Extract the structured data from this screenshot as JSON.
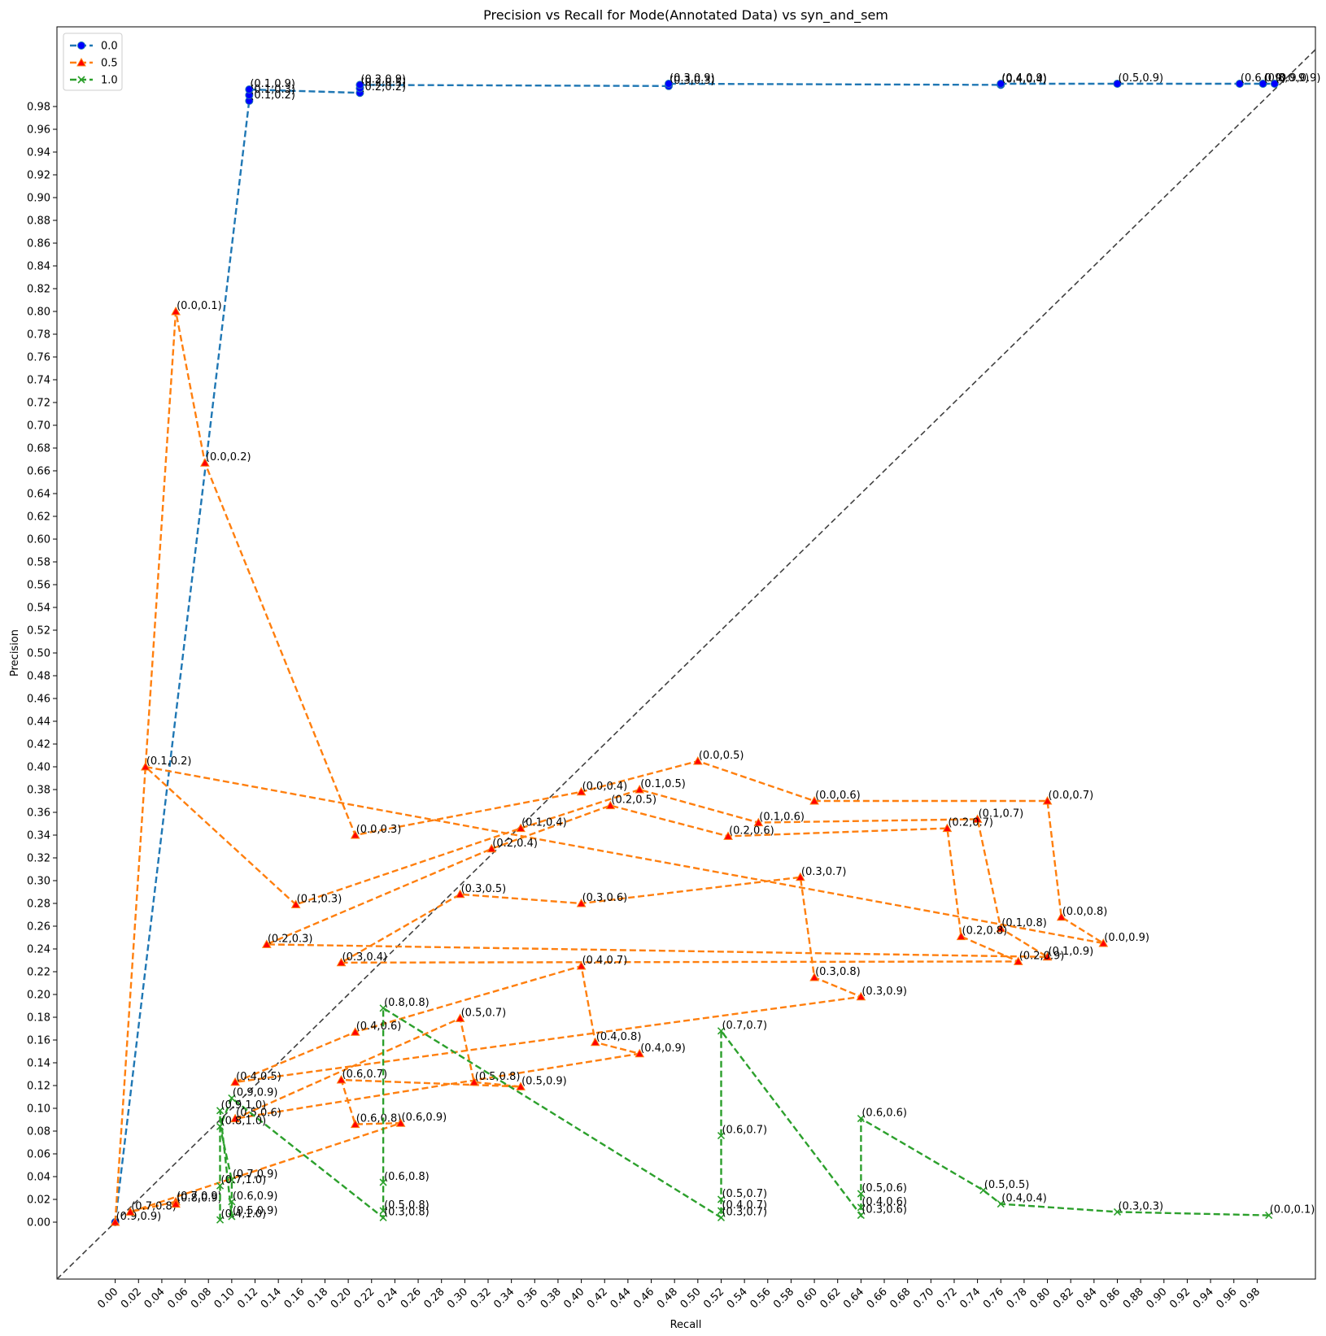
{
  "chart_data": {
    "type": "line",
    "title": "Precision vs Recall for Mode(Annotated Data) vs syn_and_sem",
    "xlabel": "Recall",
    "ylabel": "Precision",
    "xlim": [
      -0.05,
      1.03
    ],
    "ylim": [
      -0.05,
      1.05
    ],
    "x_ticks": [
      "0.00",
      "0.02",
      "0.04",
      "0.06",
      "0.08",
      "0.10",
      "0.12",
      "0.14",
      "0.16",
      "0.18",
      "0.20",
      "0.22",
      "0.24",
      "0.26",
      "0.28",
      "0.30",
      "0.32",
      "0.34",
      "0.36",
      "0.38",
      "0.40",
      "0.42",
      "0.44",
      "0.46",
      "0.48",
      "0.50",
      "0.52",
      "0.54",
      "0.56",
      "0.58",
      "0.60",
      "0.62",
      "0.64",
      "0.66",
      "0.68",
      "0.70",
      "0.72",
      "0.74",
      "0.76",
      "0.78",
      "0.80",
      "0.82",
      "0.84",
      "0.86",
      "0.88",
      "0.90",
      "0.92",
      "0.94",
      "0.96",
      "0.98"
    ],
    "y_ticks": [
      "0.00",
      "0.02",
      "0.04",
      "0.06",
      "0.08",
      "0.10",
      "0.12",
      "0.14",
      "0.16",
      "0.18",
      "0.20",
      "0.22",
      "0.24",
      "0.26",
      "0.28",
      "0.30",
      "0.32",
      "0.34",
      "0.36",
      "0.38",
      "0.40",
      "0.42",
      "0.44",
      "0.46",
      "0.48",
      "0.50",
      "0.52",
      "0.54",
      "0.56",
      "0.58",
      "0.60",
      "0.62",
      "0.64",
      "0.66",
      "0.68",
      "0.70",
      "0.72",
      "0.74",
      "0.76",
      "0.78",
      "0.80",
      "0.82",
      "0.84",
      "0.86",
      "0.88",
      "0.90",
      "0.92",
      "0.94",
      "0.96",
      "0.98"
    ],
    "grid": false,
    "legend_position": "top-left",
    "diagonal_reference": true,
    "series": [
      {
        "name": "0.0",
        "color": "#1f77b4",
        "marker": "circle",
        "points": [
          {
            "x": 0.0,
            "y": 0.0,
            "label": ""
          },
          {
            "x": 0.115,
            "y": 0.985,
            "label": "(0.1,0.2)"
          },
          {
            "x": 0.115,
            "y": 0.99,
            "label": "(0.1,0.3)"
          },
          {
            "x": 0.115,
            "y": 0.995,
            "label": "(0.1,0.9)"
          },
          {
            "x": 0.21,
            "y": 0.992,
            "label": "(0.2,0.2)"
          },
          {
            "x": 0.21,
            "y": 0.996,
            "label": "(0.2,0.5)"
          },
          {
            "x": 0.21,
            "y": 0.999,
            "label": "(0.2,0.9)"
          },
          {
            "x": 0.475,
            "y": 0.998,
            "label": "(0.3,0.3)"
          },
          {
            "x": 0.475,
            "y": 1.0,
            "label": "(0.3,0.9)"
          },
          {
            "x": 0.76,
            "y": 0.999,
            "label": "(0.4,0.4)"
          },
          {
            "x": 0.76,
            "y": 1.0,
            "label": "(0.4,0.9)"
          },
          {
            "x": 0.86,
            "y": 1.0,
            "label": "(0.5,0.9)"
          },
          {
            "x": 0.965,
            "y": 1.0,
            "label": "(0.6,0.9)"
          },
          {
            "x": 0.985,
            "y": 1.0,
            "label": "(0.8,0.9)"
          },
          {
            "x": 0.995,
            "y": 1.0,
            "label": "(0.9,0.9)"
          }
        ]
      },
      {
        "name": "0.5",
        "color": "#ff7f0e",
        "marker": "triangle",
        "points": [
          {
            "x": 0.0,
            "y": 0.0,
            "label": "(0.9,0.9)"
          },
          {
            "x": 0.052,
            "y": 0.8,
            "label": "(0.0,0.1)"
          },
          {
            "x": 0.077,
            "y": 0.667,
            "label": "(0.0,0.2)"
          },
          {
            "x": 0.206,
            "y": 0.34,
            "label": "(0.0,0.3)"
          },
          {
            "x": 0.4,
            "y": 0.378,
            "label": "(0.0,0.4)"
          },
          {
            "x": 0.5,
            "y": 0.405,
            "label": "(0.0,0.5)"
          },
          {
            "x": 0.6,
            "y": 0.37,
            "label": "(0.0,0.6)"
          },
          {
            "x": 0.8,
            "y": 0.37,
            "label": "(0.0,0.7)"
          },
          {
            "x": 0.812,
            "y": 0.268,
            "label": "(0.0,0.8)"
          },
          {
            "x": 0.848,
            "y": 0.245,
            "label": "(0.0,0.9)"
          },
          {
            "x": 0.026,
            "y": 0.4,
            "label": "(0.1,0.2)"
          },
          {
            "x": 0.155,
            "y": 0.279,
            "label": "(0.1,0.3)"
          },
          {
            "x": 0.348,
            "y": 0.346,
            "label": "(0.1,0.4)"
          },
          {
            "x": 0.45,
            "y": 0.38,
            "label": "(0.1,0.5)"
          },
          {
            "x": 0.552,
            "y": 0.351,
            "label": "(0.1,0.6)"
          },
          {
            "x": 0.74,
            "y": 0.354,
            "label": "(0.1,0.7)"
          },
          {
            "x": 0.76,
            "y": 0.258,
            "label": "(0.1,0.8)"
          },
          {
            "x": 0.8,
            "y": 0.233,
            "label": "(0.1,0.9)"
          },
          {
            "x": 0.13,
            "y": 0.244,
            "label": "(0.2,0.3)"
          },
          {
            "x": 0.323,
            "y": 0.328,
            "label": "(0.2,0.4)"
          },
          {
            "x": 0.425,
            "y": 0.366,
            "label": "(0.2,0.5)"
          },
          {
            "x": 0.526,
            "y": 0.339,
            "label": "(0.2,0.6)"
          },
          {
            "x": 0.714,
            "y": 0.346,
            "label": "(0.2,0.7)"
          },
          {
            "x": 0.726,
            "y": 0.251,
            "label": "(0.2,0.8)"
          },
          {
            "x": 0.775,
            "y": 0.229,
            "label": "(0.2,0.9)"
          },
          {
            "x": 0.194,
            "y": 0.228,
            "label": "(0.3,0.4)"
          },
          {
            "x": 0.296,
            "y": 0.288,
            "label": "(0.3,0.5)"
          },
          {
            "x": 0.4,
            "y": 0.28,
            "label": "(0.3,0.6)"
          },
          {
            "x": 0.588,
            "y": 0.303,
            "label": "(0.3,0.7)"
          },
          {
            "x": 0.6,
            "y": 0.215,
            "label": "(0.3,0.8)"
          },
          {
            "x": 0.64,
            "y": 0.198,
            "label": "(0.3,0.9)"
          },
          {
            "x": 0.103,
            "y": 0.123,
            "label": "(0.4,0.5)"
          },
          {
            "x": 0.206,
            "y": 0.167,
            "label": "(0.4,0.6)"
          },
          {
            "x": 0.4,
            "y": 0.225,
            "label": "(0.4,0.7)"
          },
          {
            "x": 0.412,
            "y": 0.158,
            "label": "(0.4,0.8)"
          },
          {
            "x": 0.45,
            "y": 0.148,
            "label": "(0.4,0.9)"
          },
          {
            "x": 0.103,
            "y": 0.091,
            "label": "(0.5,0.6)"
          },
          {
            "x": 0.296,
            "y": 0.179,
            "label": "(0.5,0.7)"
          },
          {
            "x": 0.308,
            "y": 0.123,
            "label": "(0.5,0.8)"
          },
          {
            "x": 0.348,
            "y": 0.119,
            "label": "(0.5,0.9)"
          },
          {
            "x": 0.194,
            "y": 0.125,
            "label": "(0.6,0.7)"
          },
          {
            "x": 0.206,
            "y": 0.086,
            "label": "(0.6,0.8)"
          },
          {
            "x": 0.245,
            "y": 0.087,
            "label": "(0.6,0.9)"
          },
          {
            "x": 0.013,
            "y": 0.009,
            "label": "(0.7,0.8)"
          },
          {
            "x": 0.052,
            "y": 0.018,
            "label": "(0.7,0.9)"
          },
          {
            "x": 0.052,
            "y": 0.016,
            "label": "(0.8,0.9)"
          }
        ]
      },
      {
        "name": "1.0",
        "color": "#2ca02c",
        "marker": "x",
        "points": [
          {
            "x": 0.99,
            "y": 0.006,
            "label": "(0.0,0.1)"
          },
          {
            "x": 0.86,
            "y": 0.009,
            "label": "(0.3,0.3)"
          },
          {
            "x": 0.76,
            "y": 0.016,
            "label": "(0.4,0.4)"
          },
          {
            "x": 0.745,
            "y": 0.028,
            "label": "(0.5,0.5)"
          },
          {
            "x": 0.64,
            "y": 0.091,
            "label": "(0.6,0.6)"
          },
          {
            "x": 0.64,
            "y": 0.025,
            "label": "(0.5,0.6)"
          },
          {
            "x": 0.64,
            "y": 0.013,
            "label": "(0.4,0.6)"
          },
          {
            "x": 0.64,
            "y": 0.006,
            "label": "(0.3,0.6)"
          },
          {
            "x": 0.52,
            "y": 0.168,
            "label": "(0.7,0.7)"
          },
          {
            "x": 0.52,
            "y": 0.076,
            "label": "(0.6,0.7)"
          },
          {
            "x": 0.52,
            "y": 0.02,
            "label": "(0.5,0.7)"
          },
          {
            "x": 0.52,
            "y": 0.01,
            "label": "(0.4,0.7)"
          },
          {
            "x": 0.52,
            "y": 0.004,
            "label": "(0.3,0.7)"
          },
          {
            "x": 0.23,
            "y": 0.188,
            "label": "(0.8,0.8)"
          },
          {
            "x": 0.23,
            "y": 0.035,
            "label": "(0.6,0.8)"
          },
          {
            "x": 0.23,
            "y": 0.01,
            "label": "(0.5,0.8)"
          },
          {
            "x": 0.23,
            "y": 0.004,
            "label": "(0.3,0.8)"
          },
          {
            "x": 0.1,
            "y": 0.109,
            "label": "(0.9,0.9)"
          },
          {
            "x": 0.09,
            "y": 0.084,
            "label": "(0.8,1.0)"
          },
          {
            "x": 0.1,
            "y": 0.037,
            "label": "(0.7,0.9)"
          },
          {
            "x": 0.1,
            "y": 0.018,
            "label": "(0.6,0.9)"
          },
          {
            "x": 0.1,
            "y": 0.005,
            "label": "(0.5,0.9)"
          },
          {
            "x": 0.09,
            "y": 0.098,
            "label": "(0.9,1.0)"
          },
          {
            "x": 0.09,
            "y": 0.032,
            "label": "(0.7,1.0)"
          },
          {
            "x": 0.09,
            "y": 0.002,
            "label": "(0.4,1.0)"
          }
        ]
      }
    ]
  }
}
